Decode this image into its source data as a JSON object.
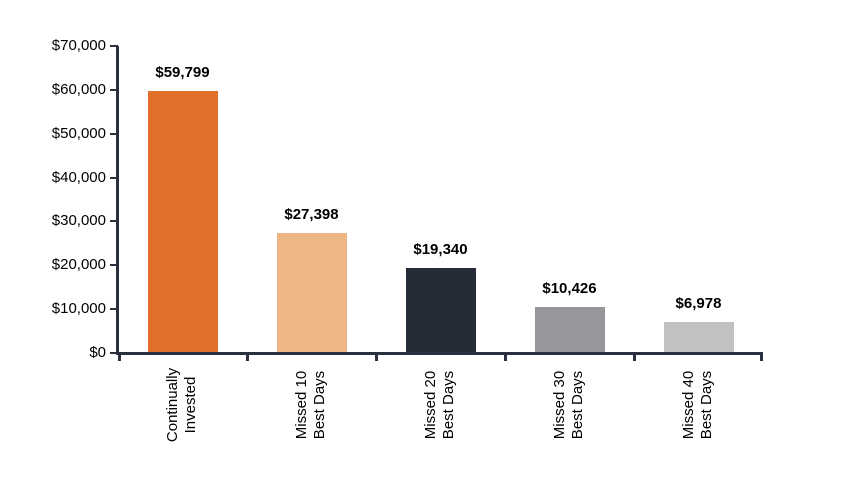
{
  "chart_data": {
    "type": "bar",
    "title": "",
    "xlabel": "",
    "ylabel": "",
    "categories": [
      [
        "Continually",
        "Invested"
      ],
      [
        "Missed 10",
        "Best Days"
      ],
      [
        "Missed 20",
        "Best Days"
      ],
      [
        "Missed 30",
        "Best Days"
      ],
      [
        "Missed 40",
        "Best Days"
      ]
    ],
    "values": [
      59799,
      27398,
      19340,
      10426,
      6978
    ],
    "value_labels": [
      "$59,799",
      "$27,398",
      "$19,340",
      "$10,426",
      "$6,978"
    ],
    "bar_colors": [
      "#E0702A",
      "#EFB685",
      "#262B38",
      "#96979B",
      "#C1C1C2"
    ],
    "ylim": [
      0,
      70000
    ],
    "ytick_step": 10000,
    "ytick_labels": [
      "$0",
      "$10,000",
      "$20,000",
      "$30,000",
      "$40,000",
      "$50,000",
      "$60,000",
      "$70,000"
    ],
    "grid": false,
    "legend": false,
    "axis_color": "#2A3040",
    "text_color": "#000000",
    "background_color": "#FFFFFF"
  }
}
